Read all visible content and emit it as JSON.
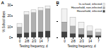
{
  "chart_data": [
    {
      "type": "bar",
      "title": "A",
      "stacked": true,
      "categories": [
        "0",
        "2/8",
        "2/3",
        "14",
        "7"
      ],
      "series": [
        {
          "name": "Household, infected",
          "color": "#404040",
          "values": [
            3.5,
            4.5,
            5.0,
            5.5,
            6.0
          ]
        },
        {
          "name": "Household, non-infected",
          "color": "#b0b0b0",
          "values": [
            6.0,
            16.5,
            18.0,
            19.5,
            20.5
          ]
        },
        {
          "name": "In-school, infected",
          "color": "#f2f2f2",
          "values": [
            3.5,
            3.0,
            2.5,
            2.5,
            2.5
          ]
        }
      ],
      "xlabel": "Testing frequency, d",
      "ylabel": "% School days",
      "ylim": [
        0,
        30
      ],
      "yticks": [
        0,
        10,
        20,
        30
      ]
    },
    {
      "type": "bar",
      "title": "B",
      "stacked": true,
      "categories": [
        "0",
        "2/8",
        "2/3",
        "14",
        "7"
      ],
      "series": [
        {
          "name": "Household, infected",
          "color": "#404040",
          "values": [
            3.5,
            2.5,
            2.0,
            1.5,
            1.2
          ]
        },
        {
          "name": "Household, non-infected",
          "color": "#b0b0b0",
          "values": [
            6.0,
            4.5,
            3.5,
            2.5,
            2.0
          ]
        },
        {
          "name": "In-school, infected",
          "color": "#f2f2f2",
          "values": [
            8.0,
            5.5,
            4.0,
            3.0,
            2.0
          ]
        }
      ],
      "xlabel": "Testing frequency, d",
      "ylim": [
        0,
        20
      ],
      "yticks": [
        0,
        10,
        20
      ],
      "tick_labels": "x",
      "legend": "upper right"
    }
  ]
}
